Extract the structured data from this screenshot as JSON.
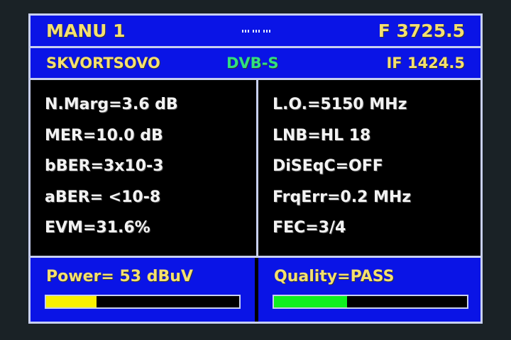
{
  "header": {
    "mode": "MANU 1",
    "frequency": "F 3725.5"
  },
  "subheader": {
    "satellite": "SKVORTSOVO",
    "standard": "DVB-S",
    "if": "IF 1424.5"
  },
  "left_params": [
    "N.Marg=3.6 dB",
    "MER=10.0 dB",
    "bBER=3x10-3",
    "aBER= <10-8",
    "EVM=31.6%"
  ],
  "right_params": [
    "L.O.=5150 MHz",
    "LNB=HL 18",
    "DiSEqC=OFF",
    "FrqErr=0.2 MHz",
    "FEC=3/4"
  ],
  "power": {
    "label": "Power=  53 dBuV",
    "level_percent": 26,
    "color": "#f8f000"
  },
  "quality": {
    "label": "Quality=PASS",
    "level_percent": 38,
    "color": "#10f020"
  }
}
